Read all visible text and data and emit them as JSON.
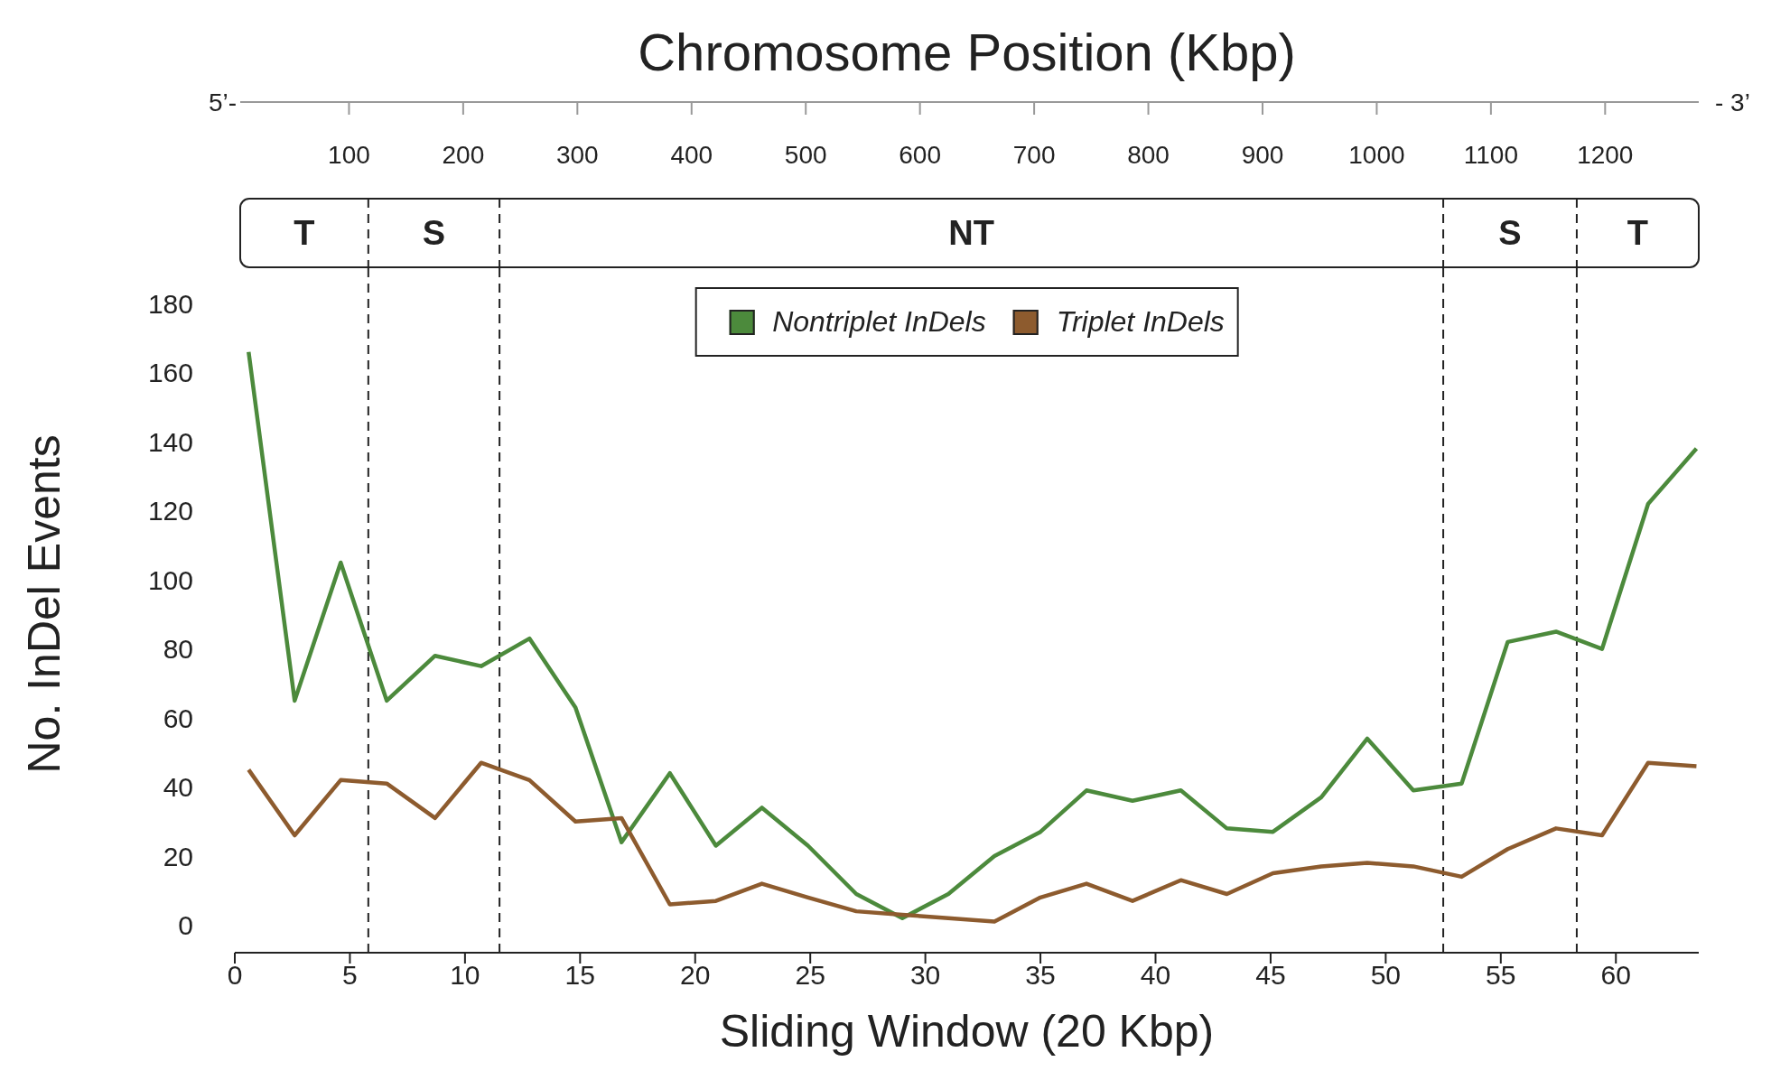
{
  "chart_data": {
    "type": "line",
    "xlabel": "Sliding Window (20 Kbp)",
    "ylabel": "No. InDel Events",
    "x2label": "Chromosome Position (Kbp)",
    "x": [
      0.6,
      2.6,
      4.6,
      6.6,
      8.7,
      10.7,
      12.8,
      14.8,
      16.8,
      18.9,
      20.9,
      22.9,
      24.9,
      27,
      29,
      31,
      33,
      35,
      37,
      39,
      41.1,
      43.1,
      45.1,
      47.2,
      49.2,
      51.2,
      53.3,
      55.3,
      57.4,
      59.4,
      61.4,
      63.5
    ],
    "series": [
      {
        "name": "Nontriplet InDels",
        "color": "#4c8a3c",
        "values": [
          166,
          65,
          105,
          65,
          78,
          75,
          83,
          63,
          24,
          44,
          23,
          34,
          23,
          9,
          2,
          9,
          20,
          27,
          39,
          36,
          39,
          28,
          27,
          37,
          54,
          39,
          41,
          82,
          85,
          80,
          122,
          138
        ]
      },
      {
        "name": "Triplet InDels",
        "color": "#8d5b2e",
        "values": [
          45,
          26,
          42,
          41,
          31,
          47,
          42,
          30,
          31,
          6,
          7,
          12,
          8,
          4,
          3,
          2,
          1,
          8,
          12,
          7,
          13,
          9,
          15,
          17,
          18,
          17,
          14,
          22,
          28,
          26,
          47,
          46
        ]
      }
    ],
    "xlim": [
      0,
      63.6
    ],
    "xticks": [
      0,
      5,
      10,
      15,
      20,
      25,
      30,
      35,
      40,
      45,
      50,
      55,
      60
    ],
    "ylim": [
      -8,
      190
    ],
    "yticks": [
      0,
      20,
      40,
      60,
      80,
      100,
      120,
      140,
      160,
      180
    ],
    "x2lim": [
      0,
      1282
    ],
    "x2ticks": [
      100,
      200,
      300,
      400,
      500,
      600,
      700,
      800,
      900,
      1000,
      1100,
      1200
    ],
    "ref_lines": [
      {
        "axis": "x",
        "value": 5.8,
        "label": null,
        "line_style": "dashed"
      },
      {
        "axis": "x",
        "value": 11.5,
        "label": null,
        "line_style": "dashed"
      },
      {
        "axis": "x",
        "value": 52.5,
        "label": null,
        "line_style": "dashed"
      },
      {
        "axis": "x",
        "value": 58.3,
        "label": null,
        "line_style": "dashed"
      }
    ],
    "annotations": [
      "5’-",
      "- 3’",
      "T",
      "S",
      "NT",
      "S",
      "T"
    ],
    "legend": "top",
    "grid": false,
    "marker": "none",
    "line_style": "solid"
  }
}
